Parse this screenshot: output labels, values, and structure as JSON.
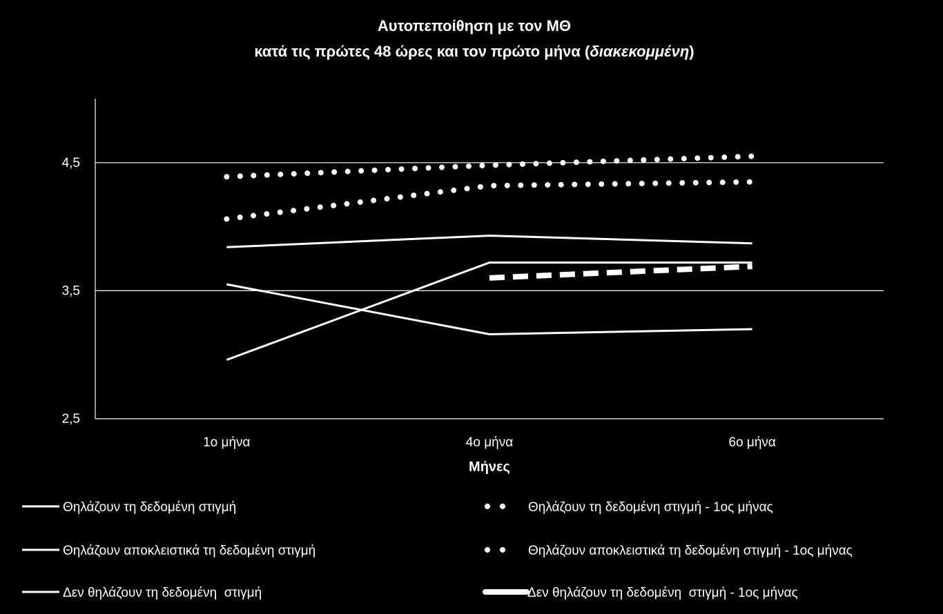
{
  "chart_data": {
    "type": "line",
    "title_line1": "Αυτοπεποίθηση με τον ΜΘ",
    "title_line2_prefix": "κατά τις πρώτες 48 ώρες και τον πρώτο μήνα (",
    "title_line2_italic": "διακεκομμένη",
    "title_line2_suffix": ")",
    "xlabel": "Μήνες",
    "ylabel": "",
    "categories": [
      "1ο μήνα",
      "4ο μήνα",
      "6ο μήνα"
    ],
    "yticks": [
      "2,5",
      "3,5",
      "4,5"
    ],
    "ytick_values": [
      2.5,
      3.5,
      4.5
    ],
    "ylim": [
      2.5,
      5.0
    ],
    "grid": "horizontal",
    "legend_position": "bottom",
    "line_color": "#ffffff",
    "background": "#000000",
    "series": [
      {
        "name": "Θηλάζουν τη δεδομένη στιγμή",
        "style": "solid",
        "values": [
          3.84,
          3.93,
          3.87
        ]
      },
      {
        "name": "Θηλάζουν αποκλειστικά τη δεδομένη στιγμή",
        "style": "solid",
        "values": [
          2.96,
          3.72,
          3.72
        ]
      },
      {
        "name": "Δεν θηλάζουν τη δεδομένη  στιγμή",
        "style": "solid",
        "values": [
          3.55,
          3.16,
          3.2
        ]
      },
      {
        "name": "Θηλάζουν τη δεδομένη στιγμή - 1ος μήνας",
        "style": "dotted",
        "values": [
          4.39,
          4.48,
          4.55
        ]
      },
      {
        "name": "Θηλάζουν αποκλειστικά τη δεδομένη στιγμή - 1ος μήνας",
        "style": "dotted",
        "values": [
          4.06,
          4.32,
          4.35
        ]
      },
      {
        "name": "Δεν θηλάζουν τη δεδομένη  στιγμή - 1ος μήνας",
        "style": "dashed",
        "values": [
          null,
          3.6,
          3.69
        ]
      }
    ]
  }
}
